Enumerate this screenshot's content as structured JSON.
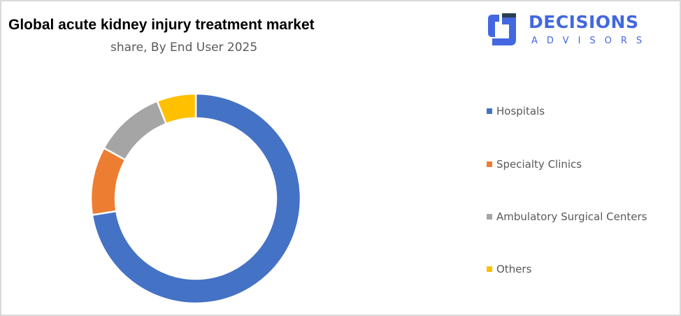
{
  "header": {
    "title": "Global acute kidney injury treatment market",
    "subtitle": "share, By End User 2025"
  },
  "logo": {
    "word": "DECISIONS",
    "sub": "ADVISORS",
    "color": "#4267e0"
  },
  "chart_data": {
    "type": "pie",
    "variant": "donut",
    "title": "Global acute kidney injury treatment market share, By End User 2025",
    "categories": [
      "Hospitals",
      "Specialty Clinics",
      "Ambulatory Surgical Centers",
      "Others"
    ],
    "values": [
      72.5,
      10.5,
      11,
      6
    ],
    "unit": "%",
    "colors": [
      "#4472c4",
      "#ed7d31",
      "#a5a5a5",
      "#ffc000"
    ],
    "start_angle_deg": 0,
    "direction": "clockwise",
    "legend_position": "right"
  },
  "legend": {
    "items": [
      {
        "label": "Hospitals",
        "color": "#4472c4"
      },
      {
        "label": "Specialty Clinics",
        "color": "#ed7d31"
      },
      {
        "label": "Ambulatory Surgical Centers",
        "color": "#a5a5a5"
      },
      {
        "label": "Others",
        "color": "#ffc000"
      }
    ]
  }
}
